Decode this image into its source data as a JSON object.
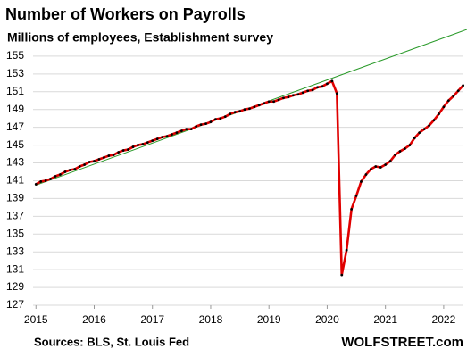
{
  "chart_data": {
    "type": "line",
    "title": "Number of Workers on Payrolls",
    "subtitle": "Millions of employees, Establishment survey",
    "source": "Sources: BLS, St. Louis Fed",
    "watermark": "WOLFSTREET.com",
    "xlim": [
      2014.95,
      2022.4
    ],
    "xticks": [
      2015,
      2016,
      2017,
      2018,
      2019,
      2020,
      2021,
      2022
    ],
    "ylim": [
      127,
      158
    ],
    "yticks": [
      127,
      129,
      131,
      133,
      135,
      137,
      139,
      141,
      143,
      145,
      147,
      149,
      151,
      153,
      155
    ],
    "grid": true,
    "series": [
      {
        "color": "#e00000",
        "marker_color": "#000000",
        "x": [
          2015,
          2015.083,
          2015.167,
          2015.25,
          2015.333,
          2015.417,
          2015.5,
          2015.583,
          2015.667,
          2015.75,
          2015.833,
          2015.917,
          2016,
          2016.083,
          2016.167,
          2016.25,
          2016.333,
          2016.417,
          2016.5,
          2016.583,
          2016.667,
          2016.75,
          2016.833,
          2016.917,
          2017,
          2017.083,
          2017.167,
          2017.25,
          2017.333,
          2017.417,
          2017.5,
          2017.583,
          2017.667,
          2017.75,
          2017.833,
          2017.917,
          2018,
          2018.083,
          2018.167,
          2018.25,
          2018.333,
          2018.417,
          2018.5,
          2018.583,
          2018.667,
          2018.75,
          2018.833,
          2018.917,
          2019,
          2019.083,
          2019.167,
          2019.25,
          2019.333,
          2019.417,
          2019.5,
          2019.583,
          2019.667,
          2019.75,
          2019.833,
          2019.917,
          2020,
          2020.083,
          2020.167,
          2020.25,
          2020.333,
          2020.417,
          2020.5,
          2020.583,
          2020.667,
          2020.75,
          2020.833,
          2020.917,
          2021,
          2021.083,
          2021.167,
          2021.25,
          2021.333,
          2021.417,
          2021.5,
          2021.583,
          2021.667,
          2021.75,
          2021.833,
          2021.917,
          2022,
          2022.083,
          2022.167,
          2022.25,
          2022.333
        ],
        "values": [
          140.6,
          140.9,
          141.0,
          141.2,
          141.5,
          141.7,
          142.0,
          142.2,
          142.3,
          142.6,
          142.8,
          143.1,
          143.2,
          143.4,
          143.6,
          143.8,
          143.9,
          144.2,
          144.4,
          144.5,
          144.8,
          145.0,
          145.1,
          145.3,
          145.5,
          145.7,
          145.9,
          146.0,
          146.2,
          146.4,
          146.6,
          146.8,
          146.8,
          147.1,
          147.3,
          147.4,
          147.6,
          147.9,
          148.0,
          148.2,
          148.5,
          148.7,
          148.8,
          149.0,
          149.1,
          149.3,
          149.5,
          149.7,
          149.9,
          149.9,
          150.1,
          150.3,
          150.4,
          150.6,
          150.7,
          150.9,
          151.1,
          151.2,
          151.5,
          151.6,
          151.9,
          152.2,
          150.8,
          130.4,
          133.2,
          137.8,
          139.3,
          140.9,
          141.7,
          142.3,
          142.6,
          142.5,
          142.8,
          143.2,
          143.9,
          144.3,
          144.6,
          145.0,
          145.8,
          146.4,
          146.8,
          147.2,
          147.8,
          148.5,
          149.3,
          150.0,
          150.5,
          151.1,
          151.7
        ]
      },
      {
        "color": "#2a9a2a",
        "x": [
          2015,
          2022.4
        ],
        "values": [
          140.5,
          158.0
        ]
      }
    ]
  }
}
